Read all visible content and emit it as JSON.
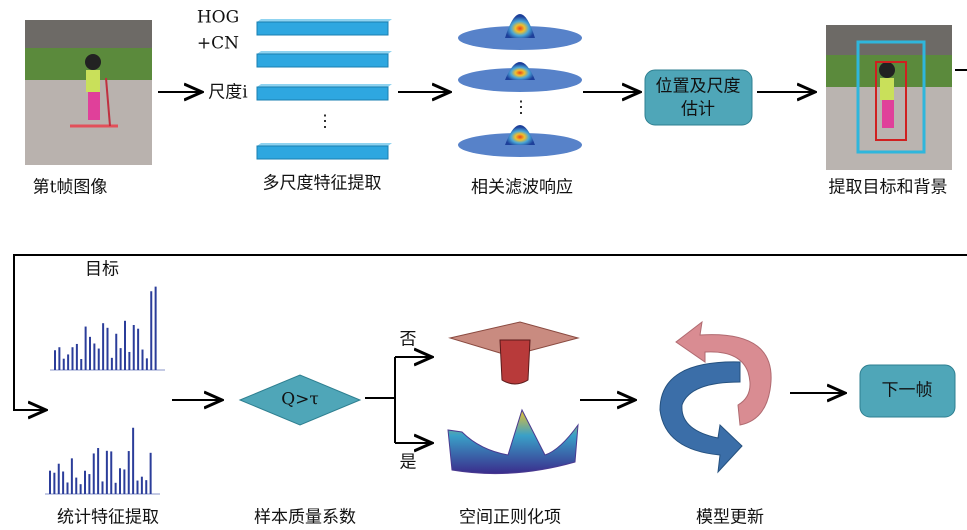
{
  "row1": {
    "frame_label": "第t帧图像",
    "features": {
      "hog": "HOG",
      "cn": "+CN",
      "scale": "尺度i",
      "dots": "⋮",
      "label": "多尺度特征提取"
    },
    "response": {
      "dots": "⋮",
      "label": "相关滤波响应"
    },
    "estimate": {
      "lines": [
        "位置及尺度",
        "估计"
      ]
    },
    "extract_label": "提取目标和背景"
  },
  "row2": {
    "target": "目标",
    "stats_label": "统计特征提取",
    "decision": {
      "text": "Q>τ",
      "label": "样本质量系数"
    },
    "no": "否",
    "yes": "是",
    "regularization_label": "空间正则化项",
    "update_label": "模型更新",
    "next": "下一帧"
  }
}
